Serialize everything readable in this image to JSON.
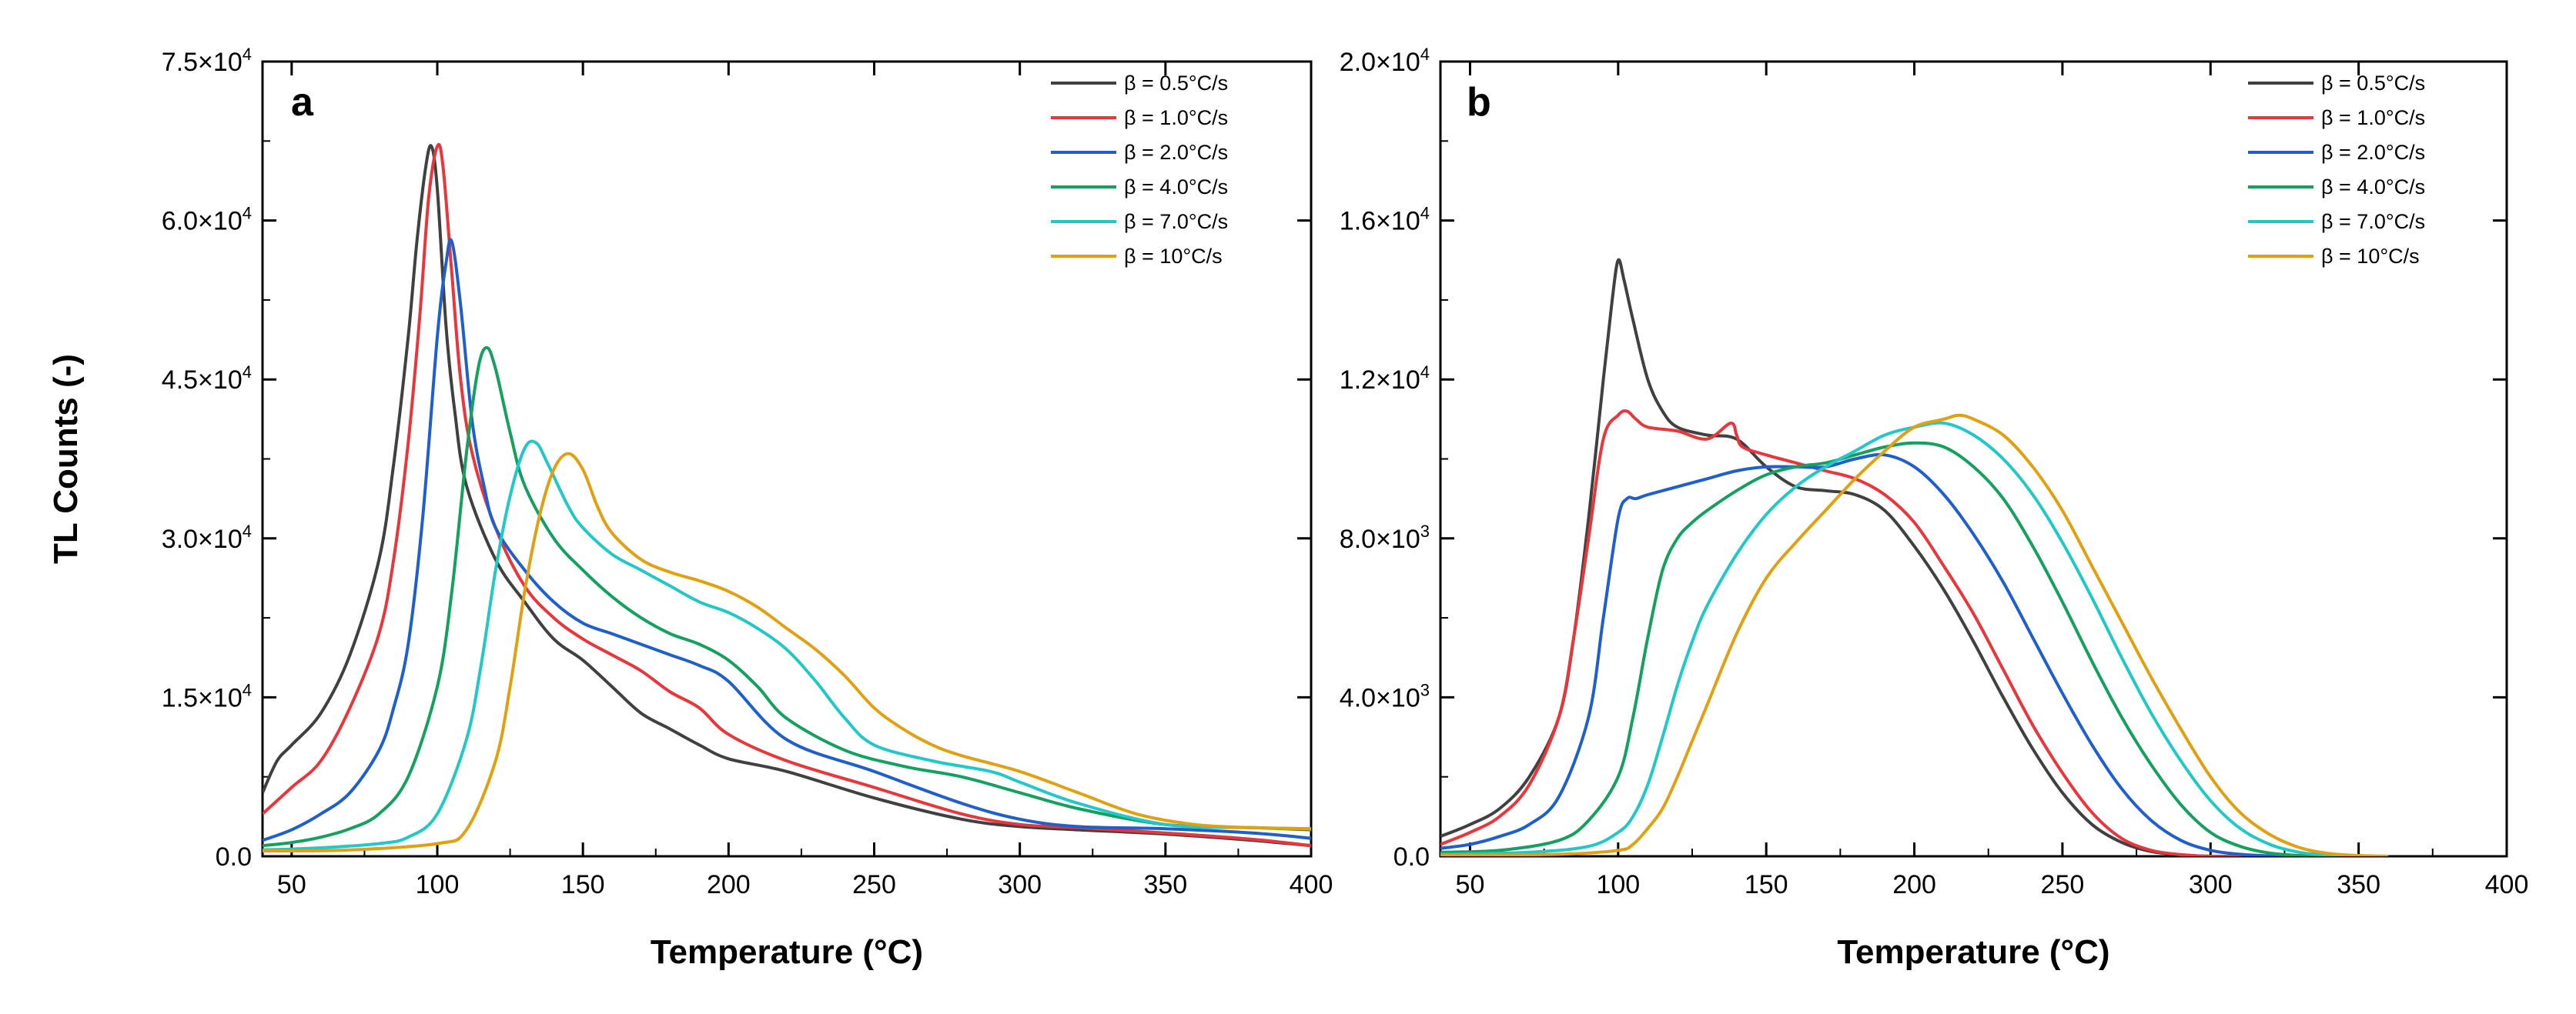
{
  "chart_data": [
    {
      "id": "a",
      "type": "line",
      "panel_label": "a",
      "xlabel": "Temperature (°C)",
      "ylabel": "TL Counts (-)",
      "xlim": [
        40,
        400
      ],
      "ylim": [
        0,
        75000
      ],
      "xticks": [
        50,
        100,
        150,
        200,
        250,
        300,
        350,
        400
      ],
      "xtick_labels": [
        "50",
        "100",
        "150",
        "200",
        "250",
        "300",
        "350",
        "400"
      ],
      "yticks": [
        {
          "value": 0,
          "base": "0.0",
          "exp": ""
        },
        {
          "value": 15000,
          "base": "1.5×10",
          "exp": "4"
        },
        {
          "value": 30000,
          "base": "3.0×10",
          "exp": "4"
        },
        {
          "value": 45000,
          "base": "4.5×10",
          "exp": "4"
        },
        {
          "value": 60000,
          "base": "6.0×10",
          "exp": "4"
        },
        {
          "value": 75000,
          "base": "7.5×10",
          "exp": "4"
        }
      ],
      "legend_position": "top-right",
      "series": [
        {
          "name": "β = 0.5°C/s",
          "color": "#404040",
          "x": [
            40,
            45,
            50,
            60,
            70,
            80,
            85,
            90,
            93,
            96,
            98,
            100,
            103,
            106,
            110,
            120,
            130,
            140,
            150,
            160,
            170,
            180,
            190,
            200,
            220,
            250,
            280,
            300,
            320,
            350,
            380,
            400
          ],
          "y": [
            6000,
            9000,
            10500,
            13500,
            19000,
            28000,
            37000,
            49000,
            58000,
            65000,
            67000,
            63000,
            50000,
            42000,
            35000,
            28000,
            24000,
            20500,
            18500,
            16000,
            13500,
            12000,
            10500,
            9200,
            8000,
            5500,
            3500,
            2800,
            2500,
            2100,
            1500,
            1000
          ]
        },
        {
          "name": "β = 1.0°C/s",
          "color": "#e8363a",
          "x": [
            40,
            50,
            60,
            70,
            80,
            85,
            90,
            94,
            97,
            100,
            102,
            105,
            108,
            112,
            120,
            130,
            140,
            150,
            160,
            170,
            180,
            190,
            200,
            220,
            250,
            280,
            300,
            320,
            350,
            380,
            400
          ],
          "y": [
            4000,
            6500,
            9000,
            14000,
            21000,
            28000,
            39000,
            51000,
            62000,
            67000,
            65000,
            55000,
            45000,
            38000,
            31000,
            25500,
            22500,
            20500,
            19000,
            17500,
            15500,
            14000,
            11500,
            9000,
            6500,
            4000,
            3000,
            2700,
            2200,
            1600,
            1000
          ]
        },
        {
          "name": "β = 2.0°C/s",
          "color": "#1f5fcc",
          "x": [
            40,
            50,
            60,
            70,
            80,
            85,
            90,
            95,
            100,
            103,
            105,
            108,
            112,
            116,
            120,
            130,
            140,
            150,
            160,
            170,
            180,
            190,
            200,
            220,
            250,
            280,
            300,
            320,
            350,
            380,
            400
          ],
          "y": [
            1500,
            2500,
            4000,
            6000,
            10000,
            14000,
            20000,
            32000,
            49000,
            56000,
            58000,
            52000,
            41000,
            35000,
            31000,
            27000,
            24000,
            22000,
            21000,
            20000,
            19000,
            18000,
            16500,
            11000,
            8000,
            5000,
            3500,
            2800,
            2600,
            2200,
            1700
          ]
        },
        {
          "name": "β = 4.0°C/s",
          "color": "#14a05e",
          "x": [
            40,
            50,
            60,
            70,
            80,
            90,
            100,
            105,
            110,
            114,
            117,
            120,
            125,
            130,
            140,
            150,
            160,
            170,
            180,
            190,
            200,
            210,
            220,
            240,
            260,
            280,
            300,
            320,
            350,
            380,
            400
          ],
          "y": [
            1000,
            1300,
            1800,
            2600,
            4000,
            7500,
            16000,
            25000,
            38000,
            46000,
            48000,
            46000,
            40000,
            35000,
            30000,
            27000,
            24500,
            22500,
            21000,
            20000,
            18500,
            16000,
            13000,
            10000,
            8500,
            7500,
            6000,
            4500,
            3000,
            2700,
            2500
          ]
        },
        {
          "name": "β = 7.0°C/s",
          "color": "#22c8c8",
          "x": [
            40,
            60,
            80,
            90,
            100,
            110,
            115,
            120,
            125,
            130,
            134,
            138,
            145,
            150,
            160,
            170,
            180,
            190,
            200,
            210,
            220,
            230,
            240,
            250,
            270,
            290,
            300,
            320,
            350,
            380,
            400
          ],
          "y": [
            600,
            800,
            1200,
            1800,
            4000,
            11000,
            18000,
            27000,
            34000,
            38500,
            39000,
            37000,
            33000,
            31000,
            28500,
            27000,
            25500,
            24000,
            23000,
            21500,
            19500,
            16500,
            13000,
            10500,
            9000,
            8000,
            7000,
            5000,
            3000,
            2700,
            2600
          ]
        },
        {
          "name": "β = 10°C/s",
          "color": "#e0a010",
          "x": [
            40,
            70,
            100,
            110,
            120,
            125,
            130,
            135,
            140,
            145,
            150,
            155,
            160,
            170,
            180,
            190,
            200,
            210,
            220,
            230,
            240,
            250,
            260,
            270,
            280,
            300,
            320,
            340,
            360,
            380,
            400
          ],
          "y": [
            500,
            600,
            1200,
            2500,
            9000,
            16000,
            25000,
            32000,
            36500,
            38000,
            36500,
            33000,
            30500,
            28000,
            26800,
            26000,
            25000,
            23500,
            21500,
            19500,
            17000,
            14000,
            12000,
            10500,
            9500,
            8000,
            6000,
            4000,
            3000,
            2700,
            2600
          ]
        }
      ]
    },
    {
      "id": "b",
      "type": "line",
      "panel_label": "b",
      "xlabel": "Temperature (°C)",
      "ylabel": "",
      "xlim": [
        40,
        400
      ],
      "ylim": [
        0,
        20000
      ],
      "xticks": [
        50,
        100,
        150,
        200,
        250,
        300,
        350,
        400
      ],
      "xtick_labels": [
        "50",
        "100",
        "150",
        "200",
        "250",
        "300",
        "350",
        "400"
      ],
      "yticks": [
        {
          "value": 0,
          "base": "0.0",
          "exp": ""
        },
        {
          "value": 4000,
          "base": "4.0×10",
          "exp": "3"
        },
        {
          "value": 8000,
          "base": "8.0×10",
          "exp": "3"
        },
        {
          "value": 12000,
          "base": "1.2×10",
          "exp": "4"
        },
        {
          "value": 16000,
          "base": "1.6×10",
          "exp": "4"
        },
        {
          "value": 20000,
          "base": "2.0×10",
          "exp": "4"
        }
      ],
      "legend_position": "top-right",
      "series": [
        {
          "name": "β = 0.5°C/s",
          "color": "#404040",
          "x": [
            40,
            50,
            60,
            70,
            80,
            85,
            90,
            95,
            98,
            100,
            102,
            105,
            110,
            115,
            120,
            130,
            140,
            150,
            160,
            170,
            180,
            190,
            200,
            210,
            220,
            230,
            240,
            250,
            260,
            270,
            280,
            290,
            300,
            320
          ],
          "y": [
            500,
            800,
            1200,
            2000,
            3500,
            5500,
            8500,
            12000,
            14000,
            15000,
            14500,
            13500,
            12000,
            11200,
            10800,
            10600,
            10500,
            9800,
            9300,
            9200,
            9100,
            8700,
            7800,
            6700,
            5400,
            4000,
            2700,
            1600,
            800,
            350,
            120,
            40,
            0,
            0
          ]
        },
        {
          "name": "β = 1.0°C/s",
          "color": "#e8363a",
          "x": [
            40,
            50,
            60,
            70,
            80,
            85,
            90,
            95,
            100,
            103,
            106,
            110,
            120,
            130,
            138,
            140,
            142,
            150,
            160,
            170,
            180,
            190,
            200,
            210,
            220,
            230,
            240,
            250,
            260,
            270,
            280,
            290,
            300,
            320
          ],
          "y": [
            300,
            600,
            1000,
            1800,
            3500,
            5500,
            8000,
            10500,
            11100,
            11200,
            11000,
            10800,
            10700,
            10500,
            10900,
            10600,
            10300,
            10100,
            9900,
            9700,
            9500,
            9100,
            8400,
            7300,
            6100,
            4700,
            3300,
            2100,
            1100,
            450,
            150,
            40,
            0,
            0
          ]
        },
        {
          "name": "β = 2.0°C/s",
          "color": "#1f5fcc",
          "x": [
            40,
            50,
            60,
            70,
            80,
            90,
            95,
            100,
            103,
            106,
            110,
            120,
            130,
            140,
            150,
            160,
            170,
            180,
            190,
            200,
            210,
            220,
            230,
            240,
            250,
            260,
            270,
            280,
            290,
            300,
            310,
            320,
            330
          ],
          "y": [
            200,
            300,
            500,
            800,
            1500,
            3500,
            6000,
            8500,
            9000,
            9000,
            9100,
            9300,
            9500,
            9700,
            9800,
            9800,
            9800,
            10000,
            10100,
            9800,
            9100,
            8100,
            6900,
            5500,
            4100,
            2800,
            1700,
            900,
            400,
            150,
            50,
            10,
            0
          ]
        },
        {
          "name": "β = 4.0°C/s",
          "color": "#14a05e",
          "x": [
            40,
            60,
            80,
            90,
            100,
            105,
            110,
            115,
            120,
            125,
            130,
            140,
            150,
            160,
            170,
            180,
            190,
            200,
            210,
            220,
            230,
            240,
            250,
            260,
            270,
            280,
            290,
            300,
            310,
            320,
            330,
            340
          ],
          "y": [
            100,
            150,
            400,
            900,
            2000,
            3500,
            5500,
            7200,
            8000,
            8400,
            8700,
            9200,
            9600,
            9800,
            9900,
            10100,
            10300,
            10400,
            10300,
            9800,
            9000,
            7800,
            6400,
            4900,
            3500,
            2300,
            1300,
            600,
            250,
            80,
            20,
            0
          ]
        },
        {
          "name": "β = 7.0°C/s",
          "color": "#22c8c8",
          "x": [
            40,
            70,
            90,
            100,
            105,
            110,
            115,
            120,
            125,
            130,
            140,
            150,
            160,
            170,
            180,
            190,
            200,
            210,
            220,
            230,
            240,
            250,
            260,
            270,
            280,
            290,
            300,
            310,
            320,
            330,
            340,
            350
          ],
          "y": [
            50,
            100,
            250,
            600,
            1000,
            1800,
            3000,
            4300,
            5400,
            6300,
            7600,
            8600,
            9300,
            9800,
            10200,
            10600,
            10800,
            10900,
            10600,
            10000,
            9100,
            7900,
            6500,
            5000,
            3600,
            2400,
            1400,
            700,
            300,
            100,
            30,
            0
          ]
        },
        {
          "name": "β = 10°C/s",
          "color": "#e0a010",
          "x": [
            40,
            80,
            100,
            105,
            110,
            115,
            120,
            125,
            130,
            140,
            150,
            160,
            170,
            180,
            190,
            200,
            210,
            215,
            220,
            230,
            240,
            250,
            260,
            270,
            280,
            290,
            300,
            310,
            320,
            330,
            340,
            350,
            360
          ],
          "y": [
            20,
            50,
            150,
            300,
            700,
            1200,
            2000,
            2900,
            3800,
            5600,
            7000,
            7900,
            8700,
            9500,
            10200,
            10800,
            11000,
            11100,
            11000,
            10600,
            9800,
            8700,
            7300,
            5900,
            4500,
            3200,
            2000,
            1100,
            550,
            220,
            70,
            20,
            0
          ]
        }
      ]
    }
  ]
}
